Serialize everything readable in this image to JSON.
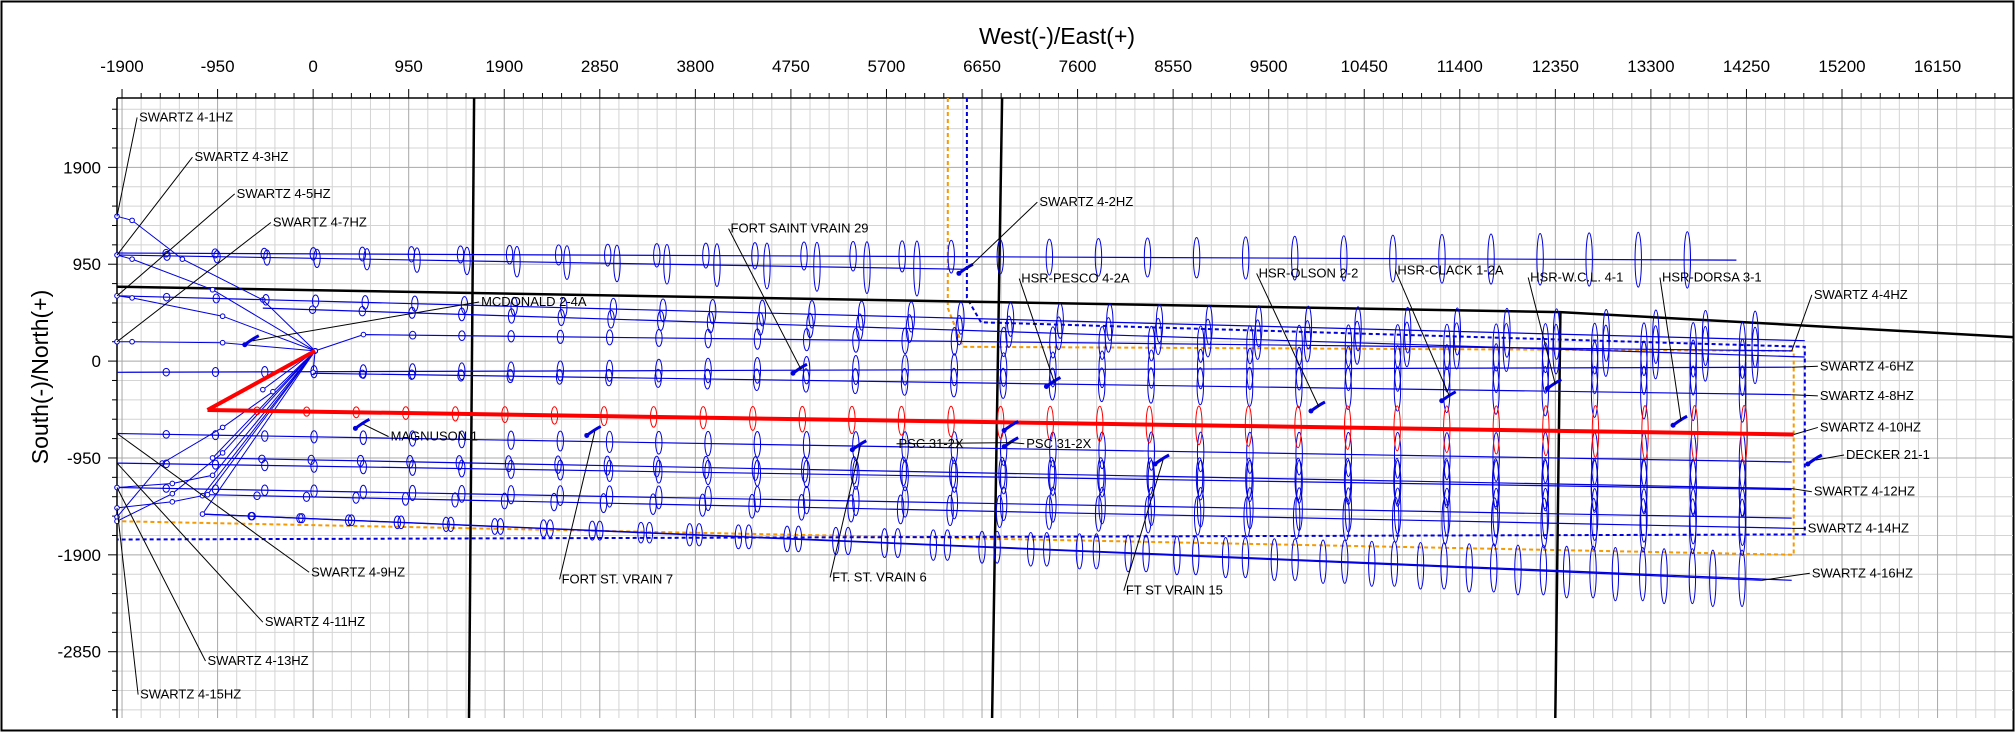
{
  "chart_data": {
    "type": "well-plan-view",
    "xlabel": "West(-)/East(+)",
    "ylabel": "South(-)/North(+)",
    "xlim": [
      -1950,
      16900
    ],
    "ylim": [
      -3500,
      2580
    ],
    "x_ticks": [
      -1900,
      -950,
      0,
      950,
      1900,
      2850,
      3800,
      4750,
      5700,
      6650,
      7600,
      8550,
      9500,
      10450,
      11400,
      12350,
      13300,
      14250,
      15200,
      16150
    ],
    "y_ticks": [
      1900,
      950,
      0,
      -950,
      -1900,
      -2850
    ],
    "grid": true,
    "colors": {
      "plan_wells": "#0000e0",
      "target_well": "#ff0000",
      "lease_line": "#000000",
      "setback_orange": "#f59a00",
      "setback_blue": "#0000e0"
    },
    "lease_lines": [
      {
        "points": [
          [
            -1950,
            730
          ],
          [
            12400,
            480
          ],
          [
            16900,
            235
          ]
        ]
      },
      {
        "points": [
          [
            1600,
            2580
          ],
          [
            1550,
            -3500
          ]
        ]
      },
      {
        "points": [
          [
            6850,
            2580
          ],
          [
            6750,
            -3500
          ]
        ]
      },
      {
        "points": [
          [
            12400,
            480
          ],
          [
            12350,
            -3500
          ]
        ]
      }
    ],
    "setback_lines": [
      {
        "color": "orange",
        "points": [
          [
            6310,
            2580
          ],
          [
            6310,
            520
          ],
          [
            6460,
            140
          ],
          [
            14720,
            100
          ],
          [
            14720,
            -1900
          ],
          [
            -1950,
            -1570
          ]
        ]
      },
      {
        "color": "blue",
        "points": [
          [
            6500,
            2580
          ],
          [
            6500,
            620
          ],
          [
            6640,
            380
          ],
          [
            14830,
            140
          ],
          [
            14830,
            -1700
          ],
          [
            -1950,
            -1750
          ]
        ]
      }
    ],
    "plan_wells": [
      {
        "name": "SWARTZ 4-1HZ",
        "path": [
          [
            -1950,
            1420
          ],
          [
            -1800,
            1380
          ],
          [
            -1300,
            1000
          ],
          [
            -500,
            600
          ],
          [
            20,
            100
          ]
        ],
        "lateral": [
          [
            -1950,
            1060
          ],
          [
            14150,
            990
          ]
        ]
      },
      {
        "name": "SWARTZ 4-3HZ",
        "path": [
          [
            -1950,
            1040
          ],
          [
            -1800,
            1000
          ],
          [
            -1000,
            700
          ],
          [
            20,
            100
          ]
        ],
        "lateral": [
          [
            -1950,
            1040
          ],
          [
            6500,
            900
          ]
        ]
      },
      {
        "name": "SWARTZ 4-5HZ",
        "path": [
          [
            -1950,
            640
          ],
          [
            -1800,
            620
          ],
          [
            -900,
            440
          ],
          [
            20,
            100
          ]
        ],
        "lateral": [
          [
            -1950,
            640
          ],
          [
            14830,
            200
          ]
        ]
      },
      {
        "name": "SWARTZ 4-7HZ",
        "path": [
          [
            -1950,
            190
          ],
          [
            -1800,
            190
          ],
          [
            -900,
            180
          ],
          [
            20,
            100
          ]
        ],
        "lateral": [
          [
            -500,
            520
          ],
          [
            14830,
            40
          ]
        ]
      },
      {
        "name": "SWARTZ 4-4HZ",
        "path": [
          [
            20,
            100
          ],
          [
            500,
            260
          ]
        ],
        "lateral": [
          [
            500,
            260
          ],
          [
            14700,
            100
          ]
        ]
      },
      {
        "name": "SWARTZ 4-6HZ",
        "path": [
          [
            20,
            100
          ],
          [
            0,
            -110
          ]
        ],
        "lateral": [
          [
            -1950,
            -110
          ],
          [
            14700,
            -60
          ]
        ]
      },
      {
        "name": "SWARTZ 4-8HZ",
        "path": [
          [
            20,
            100
          ],
          [
            -500,
            -280
          ]
        ],
        "lateral": [
          [
            0,
            -120
          ],
          [
            14700,
            -330
          ]
        ]
      },
      {
        "name": "SWARTZ 4-9HZ",
        "path": [
          [
            -1950,
            -1530
          ],
          [
            -1500,
            -1000
          ],
          [
            -900,
            -650
          ],
          [
            -400,
            -300
          ],
          [
            20,
            100
          ]
        ],
        "lateral": [
          [
            -1950,
            -710
          ],
          [
            14700,
            -990
          ]
        ]
      },
      {
        "name": "SWARTZ 4-11HZ",
        "path": [
          [
            -1950,
            -1570
          ],
          [
            -1400,
            -1300
          ],
          [
            -900,
            -900
          ],
          [
            20,
            100
          ]
        ],
        "lateral": [
          [
            -1950,
            -1000
          ],
          [
            14700,
            -1260
          ]
        ]
      },
      {
        "name": "SWARTZ 4-12HZ",
        "path": [
          [
            20,
            100
          ],
          [
            -1000,
            -950
          ]
        ],
        "lateral": [
          [
            -1000,
            -950
          ],
          [
            14700,
            -1250
          ]
        ]
      },
      {
        "name": "SWARTZ 4-13HZ",
        "path": [
          [
            -1950,
            -1240
          ],
          [
            -1400,
            -1200
          ],
          [
            -1000,
            -1120
          ],
          [
            20,
            100
          ]
        ],
        "lateral": [
          [
            -1950,
            -1240
          ],
          [
            14700,
            -1540
          ]
        ]
      },
      {
        "name": "SWARTZ 4-14HZ",
        "path": [
          [
            20,
            100
          ],
          [
            -1050,
            -1310
          ]
        ],
        "lateral": [
          [
            -1050,
            -1310
          ],
          [
            14700,
            -1640
          ]
        ]
      },
      {
        "name": "SWARTZ 4-15HZ",
        "path": [
          [
            -1950,
            -1440
          ],
          [
            -1400,
            -1380
          ],
          [
            -1100,
            -1320
          ],
          [
            20,
            100
          ]
        ],
        "lateral": [
          [
            -1100,
            -1500
          ],
          [
            14700,
            -2150
          ]
        ]
      },
      {
        "name": "SWARTZ 4-16HZ",
        "path": [
          [
            20,
            100
          ],
          [
            -1100,
            -1500
          ]
        ],
        "lateral": [
          [
            -1100,
            -1500
          ],
          [
            14400,
            -2150
          ]
        ]
      }
    ],
    "target_well": {
      "name": "SWARTZ 4-10HZ",
      "path": [
        [
          20,
          100
        ],
        [
          -1050,
          -480
        ]
      ],
      "lateral": [
        [
          -1050,
          -480
        ],
        [
          14720,
          -720
        ]
      ]
    },
    "existing_wells": [
      {
        "name": "SWARTZ 4-2HZ",
        "point": [
          6500,
          900
        ]
      },
      {
        "name": "MCDONALD 2-4A",
        "point": [
          -600,
          200
        ]
      },
      {
        "name": "FORT SAINT VRAIN 29",
        "point": [
          4850,
          -80
        ]
      },
      {
        "name": "MAGNUSON 1",
        "point": [
          500,
          -620
        ]
      },
      {
        "name": "FORT ST. VRAIN 7",
        "point": [
          2800,
          -690
        ]
      },
      {
        "name": "FT. ST. VRAIN 6",
        "point": [
          5440,
          -830
        ]
      },
      {
        "name": "PSC 31-2X",
        "point": [
          6950,
          -640
        ]
      },
      {
        "name": "PSC 31-2X",
        "point": [
          6950,
          -800
        ]
      },
      {
        "name": "HSR-PESCO 4-2A",
        "point": [
          7370,
          -210
        ]
      },
      {
        "name": "FT ST VRAIN 15",
        "point": [
          8450,
          -970
        ]
      },
      {
        "name": "HSR-OLSON 2-2",
        "point": [
          10000,
          -450
        ]
      },
      {
        "name": "HSR-CLACK 1-2A",
        "point": [
          11300,
          -350
        ]
      },
      {
        "name": "HSR-W.C.L. 4-1",
        "point": [
          12350,
          -230
        ]
      },
      {
        "name": "HSR-DORSA 3-1",
        "point": [
          13600,
          -590
        ]
      },
      {
        "name": "DECKER 21-1",
        "point": [
          14940,
          -970
        ]
      }
    ],
    "labels": [
      {
        "text": "SWARTZ 4-1HZ",
        "at": [
          -1750,
          2350
        ],
        "anchor": [
          -1950,
          1420
        ]
      },
      {
        "text": "SWARTZ 4-3HZ",
        "at": [
          -1200,
          1960
        ],
        "anchor": [
          -1950,
          1040
        ]
      },
      {
        "text": "SWARTZ 4-5HZ",
        "at": [
          -780,
          1600
        ],
        "anchor": [
          -1950,
          640
        ]
      },
      {
        "text": "SWARTZ 4-7HZ",
        "at": [
          -420,
          1320
        ],
        "anchor": [
          -1950,
          190
        ]
      },
      {
        "text": "FORT SAINT VRAIN 29",
        "at": [
          4130,
          1260
        ],
        "anchor": [
          4850,
          -80
        ]
      },
      {
        "text": "SWARTZ 4-2HZ",
        "at": [
          7200,
          1520
        ],
        "anchor": [
          6500,
          900
        ]
      },
      {
        "text": "MCDONALD 2-4A",
        "at": [
          1650,
          540
        ],
        "anchor": [
          -600,
          200
        ]
      },
      {
        "text": "HSR-PESCO 4-2A",
        "at": [
          7020,
          770
        ],
        "anchor": [
          7370,
          -210
        ]
      },
      {
        "text": "HSR-OLSON 2-2",
        "at": [
          9380,
          820
        ],
        "anchor": [
          10000,
          -450
        ]
      },
      {
        "text": "HSR-CLACK 1-2A",
        "at": [
          10760,
          850
        ],
        "anchor": [
          11300,
          -350
        ]
      },
      {
        "text": "HSR-W.C.L. 4-1",
        "at": [
          12080,
          780
        ],
        "anchor": [
          12350,
          -230
        ]
      },
      {
        "text": "HSR-DORSA 3-1",
        "at": [
          13390,
          780
        ],
        "anchor": [
          13600,
          -590
        ]
      },
      {
        "text": "SWARTZ 4-4HZ",
        "at": [
          14900,
          610
        ],
        "anchor": [
          14700,
          100
        ]
      },
      {
        "text": "SWARTZ 4-6HZ",
        "at": [
          14960,
          -90
        ],
        "anchor": [
          14700,
          -60
        ]
      },
      {
        "text": "SWARTZ 4-8HZ",
        "at": [
          14960,
          -380
        ],
        "anchor": [
          14700,
          -330
        ]
      },
      {
        "text": "SWARTZ 4-10HZ",
        "at": [
          14960,
          -690
        ],
        "anchor": [
          14720,
          -720
        ]
      },
      {
        "text": "DECKER 21-1",
        "at": [
          15220,
          -960
        ],
        "anchor": [
          14940,
          -970
        ]
      },
      {
        "text": "SWARTZ 4-12HZ",
        "at": [
          14900,
          -1320
        ],
        "anchor": [
          14700,
          -1250
        ]
      },
      {
        "text": "SWARTZ 4-14HZ",
        "at": [
          14840,
          -1680
        ],
        "anchor": [
          14700,
          -1640
        ]
      },
      {
        "text": "SWARTZ 4-16HZ",
        "at": [
          14880,
          -2120
        ],
        "anchor": [
          14400,
          -2150
        ]
      },
      {
        "text": "MAGNUSON 1",
        "at": [
          750,
          -780
        ],
        "anchor": [
          500,
          -620
        ]
      },
      {
        "text": "PSC 31-2X",
        "at": [
          5800,
          -850
        ],
        "anchor": [
          6950,
          -800
        ]
      },
      {
        "text": "PSC 31-2X",
        "at": [
          7070,
          -850
        ],
        "anchor": [
          6950,
          -800
        ]
      },
      {
        "text": "FORT ST. VRAIN 7",
        "at": [
          2450,
          -2180
        ],
        "anchor": [
          2800,
          -690
        ]
      },
      {
        "text": "FT. ST. VRAIN 6",
        "at": [
          5140,
          -2160
        ],
        "anchor": [
          5440,
          -830
        ]
      },
      {
        "text": "FT ST VRAIN 15",
        "at": [
          8060,
          -2290
        ],
        "anchor": [
          8450,
          -970
        ]
      },
      {
        "text": "SWARTZ 4-9HZ",
        "at": [
          -40,
          -2110
        ],
        "anchor": [
          -1950,
          -710
        ]
      },
      {
        "text": "SWARTZ 4-11HZ",
        "at": [
          -500,
          -2600
        ],
        "anchor": [
          -1950,
          -1000
        ]
      },
      {
        "text": "SWARTZ 4-13HZ",
        "at": [
          -1070,
          -2980
        ],
        "anchor": [
          -1950,
          -1240
        ]
      },
      {
        "text": "SWARTZ 4-15HZ",
        "at": [
          -1740,
          -3310
        ],
        "anchor": [
          -1950,
          -1440
        ]
      }
    ]
  }
}
